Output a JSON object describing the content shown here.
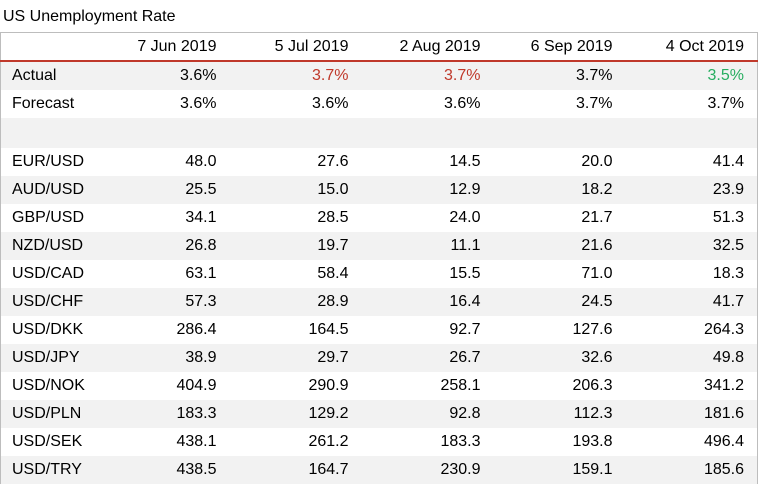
{
  "title": "US Unemployment Rate",
  "colors": {
    "accent_line": "#c0392b",
    "higher": "#c0392b",
    "lower": "#27ae60",
    "row_shade": "#f2f2f2"
  },
  "table": {
    "columns": [
      "7 Jun 2019",
      "5 Jul 2019",
      "2 Aug 2019",
      "6 Sep 2019",
      "4 Oct 2019"
    ],
    "actual": {
      "label": "Actual",
      "values": [
        "3.6%",
        "3.7%",
        "3.7%",
        "3.7%",
        "3.5%"
      ],
      "status": [
        "same",
        "higher",
        "higher",
        "same",
        "lower"
      ]
    },
    "forecast": {
      "label": "Forecast",
      "values": [
        "3.6%",
        "3.6%",
        "3.6%",
        "3.7%",
        "3.7%"
      ]
    },
    "pairs": [
      {
        "name": "EUR/USD",
        "values": [
          "48.0",
          "27.6",
          "14.5",
          "20.0",
          "41.4"
        ]
      },
      {
        "name": "AUD/USD",
        "values": [
          "25.5",
          "15.0",
          "12.9",
          "18.2",
          "23.9"
        ]
      },
      {
        "name": "GBP/USD",
        "values": [
          "34.1",
          "28.5",
          "24.0",
          "21.7",
          "51.3"
        ]
      },
      {
        "name": "NZD/USD",
        "values": [
          "26.8",
          "19.7",
          "11.1",
          "21.6",
          "32.5"
        ]
      },
      {
        "name": "USD/CAD",
        "values": [
          "63.1",
          "58.4",
          "15.5",
          "71.0",
          "18.3"
        ]
      },
      {
        "name": "USD/CHF",
        "values": [
          "57.3",
          "28.9",
          "16.4",
          "24.5",
          "41.7"
        ]
      },
      {
        "name": "USD/DKK",
        "values": [
          "286.4",
          "164.5",
          "92.7",
          "127.6",
          "264.3"
        ]
      },
      {
        "name": "USD/JPY",
        "values": [
          "38.9",
          "29.7",
          "26.7",
          "32.6",
          "49.8"
        ]
      },
      {
        "name": "USD/NOK",
        "values": [
          "404.9",
          "290.9",
          "258.1",
          "206.3",
          "341.2"
        ]
      },
      {
        "name": "USD/PLN",
        "values": [
          "183.3",
          "129.2",
          "92.8",
          "112.3",
          "181.6"
        ]
      },
      {
        "name": "USD/SEK",
        "values": [
          "438.1",
          "261.2",
          "183.3",
          "193.8",
          "496.4"
        ]
      },
      {
        "name": "USD/TRY",
        "values": [
          "438.5",
          "164.7",
          "230.9",
          "159.1",
          "185.6"
        ]
      }
    ]
  }
}
